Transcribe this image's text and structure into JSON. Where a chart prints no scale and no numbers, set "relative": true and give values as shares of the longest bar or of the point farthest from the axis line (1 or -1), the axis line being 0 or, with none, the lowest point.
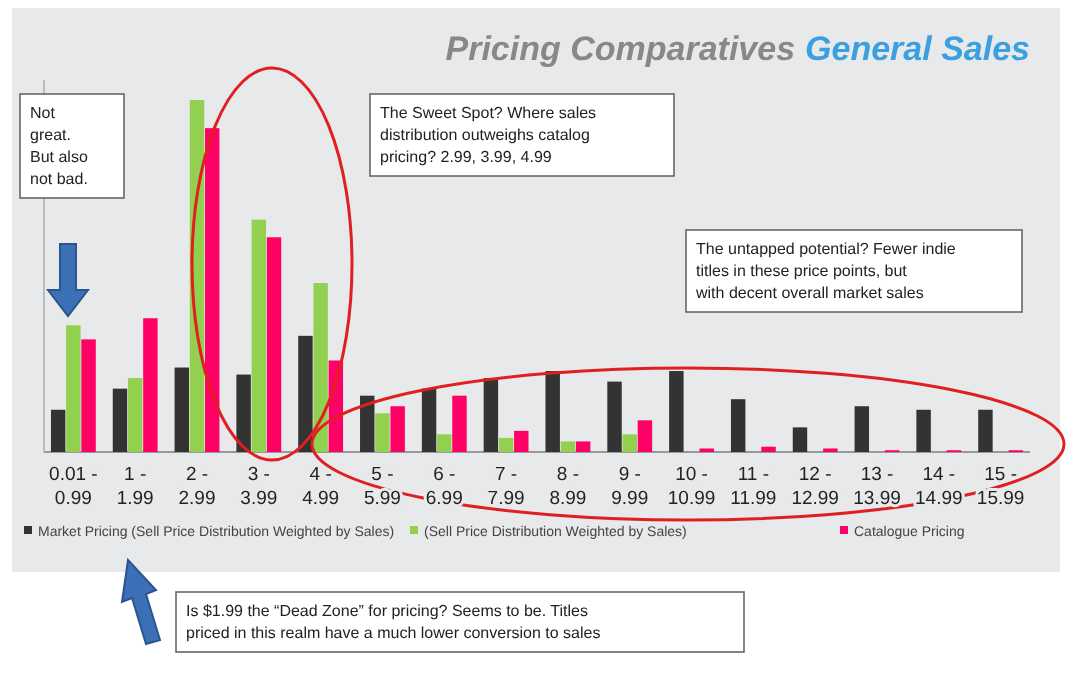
{
  "chart_data": {
    "type": "bar",
    "title": "Pricing Comparatives",
    "subtitle": "General Sales",
    "relative": true,
    "legend": "bottom",
    "categories": [
      "0.01 - 0.99",
      "1 - 1.99",
      "2 - 2.99",
      "3 - 3.99",
      "4 - 4.99",
      "5 - 5.99",
      "6 - 6.99",
      "7 - 7.99",
      "8 - 8.99",
      "9 - 9.99",
      "10 - 10.99",
      "11 - 11.99",
      "12 - 12.99",
      "13 - 13.99",
      "14 - 14.99",
      "15 - 15.99"
    ],
    "series": [
      {
        "name": "Market Pricing (Sell Price Distribution Weighted by Sales)",
        "color": "#333333",
        "values": [
          0.12,
          0.18,
          0.24,
          0.22,
          0.33,
          0.16,
          0.18,
          0.21,
          0.23,
          0.2,
          0.23,
          0.15,
          0.07,
          0.13,
          0.12,
          0.12
        ]
      },
      {
        "name": "(Sell Price Distribution Weighted by Sales)",
        "color": "#92d050",
        "values": [
          0.36,
          0.21,
          1,
          0.66,
          0.48,
          0.11,
          0.05,
          0.04,
          0.03,
          0.05,
          0,
          0,
          0,
          0,
          0,
          0
        ]
      },
      {
        "name": "Catalogue Pricing",
        "color": "#ff0066",
        "values": [
          0.32,
          0.38,
          0.92,
          0.61,
          0.26,
          0.13,
          0.16,
          0.06,
          0.03,
          0.09,
          0.01,
          0.015,
          0.01,
          0.005,
          0.005,
          0.005
        ]
      }
    ],
    "annotations": [
      "Not great. But also not bad.",
      "The Sweet Spot? Where sales distribution outweighs catalog pricing? 2.99, 3.99, 4.99",
      "The untapped potential? Fewer indie titles in these price points, but with decent overall market sales",
      "Is $1.99 the “Dead Zone” for pricing? Seems to be. Titles priced in this realm have a much lower conversion to sales"
    ]
  }
}
